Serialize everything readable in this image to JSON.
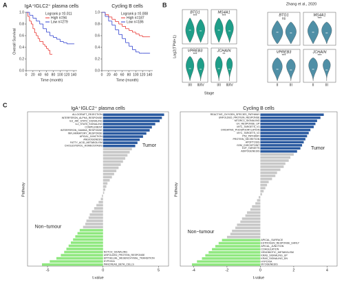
{
  "panel_labels": [
    "A",
    "B",
    "C"
  ],
  "chart_data": [
    {
      "type": "km",
      "title": "IgA⁺IGLC2⁺ plasma cells",
      "annotation": "Logrank p =0.011",
      "xlabel": "Time (month)",
      "ylabel": "Overall Survival",
      "xlim": [
        0,
        150
      ],
      "xticks": [
        0,
        20,
        40,
        60,
        80,
        100,
        120,
        140
      ],
      "ylim": [
        0,
        1
      ],
      "yticks": [
        {
          "value": 0,
          "label": "0.0"
        },
        0.2,
        0.4,
        0.6,
        0.8,
        {
          "value": 1,
          "label": "1.0"
        }
      ],
      "series": [
        {
          "name": "High n=94",
          "color": "#e8322e",
          "x": [
            0,
            5,
            10,
            15,
            20,
            25,
            30,
            35,
            40,
            50,
            55,
            60,
            65,
            70,
            75
          ],
          "values": [
            1,
            0.93,
            0.85,
            0.8,
            0.72,
            0.65,
            0.6,
            0.55,
            0.5,
            0.45,
            0.42,
            0.38,
            0.35,
            0.28,
            0.28
          ]
        },
        {
          "name": "Low n=279",
          "color": "#2d3fcf",
          "x": [
            0,
            10,
            20,
            30,
            40,
            50,
            60,
            70,
            80,
            90,
            100,
            110,
            120,
            140
          ],
          "values": [
            1,
            0.95,
            0.9,
            0.85,
            0.8,
            0.72,
            0.66,
            0.6,
            0.57,
            0.54,
            0.5,
            0.48,
            0.46,
            0.46
          ]
        }
      ]
    },
    {
      "type": "km",
      "title": "Cycling B cells",
      "annotation": "Logrank p =0.008",
      "xlabel": "Time (month)",
      "xlim": [
        0,
        150
      ],
      "xticks": [
        0,
        20,
        40,
        60,
        80,
        100,
        120,
        140
      ],
      "ylim": [
        0,
        1
      ],
      "yticks": [
        {
          "value": 0,
          "label": "0.0"
        },
        0.2,
        0.4,
        0.6,
        0.8,
        {
          "value": 1,
          "label": "1.0"
        }
      ],
      "series": [
        {
          "name": "High n=187",
          "color": "#e8322e",
          "x": [
            0,
            10,
            20,
            30,
            40,
            50,
            60,
            70,
            80,
            90,
            100,
            110,
            120,
            140
          ],
          "values": [
            1,
            0.96,
            0.92,
            0.88,
            0.84,
            0.8,
            0.76,
            0.72,
            0.69,
            0.66,
            0.63,
            0.6,
            0.58,
            0.58
          ]
        },
        {
          "name": "Low n=186",
          "color": "#2d3fcf",
          "x": [
            0,
            10,
            20,
            30,
            40,
            50,
            60,
            70,
            80,
            90,
            100,
            110,
            120,
            140
          ],
          "values": [
            1,
            0.93,
            0.85,
            0.78,
            0.7,
            0.62,
            0.55,
            0.48,
            0.42,
            0.36,
            0.32,
            0.3,
            0.3,
            0.3
          ]
        }
      ]
    },
    {
      "type": "violin",
      "ylabel": "Log2(TPM+1)",
      "xlabel": "Stage",
      "categories": [
        "I/II",
        "III/IV"
      ],
      "color": "#1f9e89",
      "panels": [
        {
          "gene": "BTG1",
          "sig": "***"
        },
        {
          "gene": "MS4A1",
          "sig": "***"
        },
        {
          "gene": "VPREB3",
          "sig": "***"
        },
        {
          "gene": "JCHAIN",
          "sig": "**"
        }
      ]
    },
    {
      "type": "violin",
      "title": "Zhang et al., 2020",
      "categories": [
        "II",
        "III"
      ],
      "color": "#4f8fa6",
      "panels": [
        {
          "gene": "BTG1",
          "sig": "ns"
        },
        {
          "gene": "MS4A1",
          "sig": "***"
        },
        {
          "gene": "VPREB3",
          "sig": "***"
        },
        {
          "gene": "JCHAIN",
          "sig": "***"
        }
      ]
    },
    {
      "type": "barh",
      "title": "IgA⁺IGLC2⁺ plasma cells",
      "xlabel": "t-value",
      "ylabel": "Pathway",
      "xlim": [
        -6.8,
        5.9
      ],
      "xticks": [
        -5,
        0,
        5
      ],
      "highlight_index": 2,
      "highlight_color": "#e03030",
      "series": [
        {
          "name": "Tumor",
          "color": "#2a5aa0",
          "categories": [
            "ALLOGRAFT_REJECTION",
            "INTERFERON_ALPHA_RESPONSE",
            "IL6_JAK_STAT3_SIGNALING",
            "IL2_STAT5_SIGNALING",
            "COMPLEMENT",
            "INTERFERON_GAMMA_RESPONSE",
            "INFLAMMATORY_RESPONSE",
            "APICAL_JUNCTION",
            "ANGIOGENESIS",
            "FATTY_ACID_METABOLISM",
            "CHOLESTEROL_HOMEOSTASIS"
          ],
          "values": [
            5.5,
            5.3,
            5.1,
            4.7,
            4.4,
            4.2,
            3.9,
            3.6,
            3.3,
            3.1,
            2.9
          ]
        },
        {
          "color": "#c8c8c8",
          "categories": [
            null,
            null,
            null,
            null,
            null,
            null,
            null,
            null,
            null,
            null,
            null,
            null,
            null,
            null,
            null,
            null,
            null,
            null,
            null,
            null,
            null,
            null,
            null,
            null,
            null,
            null
          ],
          "values": [
            2.6,
            2.4,
            2.2,
            2.0,
            1.8,
            1.6,
            1.4,
            1.2,
            1.0,
            0.8,
            0.6,
            0.4,
            0.3,
            0.2,
            0.1,
            -0.1,
            -0.2,
            -0.4,
            -0.6,
            -0.8,
            -1.0,
            -1.2,
            -1.3,
            -1.5,
            -1.6,
            -1.8
          ]
        },
        {
          "name": "Non−tumour",
          "color": "#90e880",
          "categories": [
            null,
            null,
            null,
            null,
            null,
            null,
            null,
            "NOTCH_SIGNALING",
            "UNFOLDED_PROTEIN_RESPONSE",
            "EPITHELIAL_MESENCHYMAL_TRANSITION",
            "HYPOXIA",
            "PANCREAS_BETA_CELLS"
          ],
          "values": [
            -2.1,
            -2.3,
            -2.5,
            -2.7,
            -2.9,
            -3.1,
            -3.3,
            -3.5,
            -3.8,
            -4.2,
            -4.8,
            -5.5
          ]
        }
      ]
    },
    {
      "type": "barh",
      "title": "Cycling B cells",
      "xlabel": "t-value",
      "ylabel": "Pathway",
      "xlim": [
        -4.8,
        4.6
      ],
      "xticks": [
        -4,
        -2,
        0,
        2,
        4
      ],
      "series": [
        {
          "name": "Tumor",
          "color": "#2a5aa0",
          "categories": [
            "REACTIVE_OXYGEN_SPECIES_PATHWAY",
            "UNFOLDED_PROTEIN_RESPONSE",
            "MTORC1_SIGNALING",
            "UV_RESPONSE_UP",
            "MYC_TARGETS_V1",
            "OXIDATIVE_PHOSPHORYLATION",
            "MYC_TARGETS_V2",
            "P53_PATHWAY",
            "PROTEIN_SECRETION",
            "APOPTOSIS",
            "G2M_CHECKPOINT",
            "E2F_TARGETS",
            "ADIPOGENESIS"
          ],
          "values": [
            3.8,
            3.6,
            3.4,
            3.3,
            3.2,
            3.0,
            2.9,
            2.8,
            2.7,
            2.6,
            2.5,
            2.4,
            2.2
          ]
        },
        {
          "color": "#c8c8c8",
          "categories": [
            null,
            null,
            null,
            null,
            null,
            null,
            null,
            null,
            null,
            null,
            null,
            null,
            null,
            null,
            null,
            null,
            null,
            null,
            null,
            null,
            null,
            null,
            null,
            null,
            null,
            null,
            null,
            null
          ],
          "values": [
            2.0,
            1.8,
            1.7,
            1.5,
            1.4,
            1.2,
            1.0,
            0.9,
            0.7,
            0.5,
            0.4,
            0.3,
            0.2,
            0.1,
            -0.1,
            -0.2,
            -0.3,
            -0.5,
            -0.6,
            -0.8,
            -0.9,
            -1.1,
            -1.2,
            -1.4,
            -1.5,
            -1.7,
            -1.8,
            -2.0
          ]
        },
        {
          "name": "Non−tumour",
          "color": "#90e880",
          "categories": [
            "APICAL_SURFACE",
            "ESTROGEN_RESPONSE_EARLY",
            "APICAL_JUNCTION",
            "COAGULATION",
            "XENOBIOTIC_METABOLISM",
            "KRAS_SIGNALING_UP",
            "KRAS_SIGNALING_DN",
            "HYPOXIA",
            "MYOGENESIS"
          ],
          "values": [
            -2.3,
            -2.5,
            -2.7,
            -2.9,
            -3.1,
            -3.3,
            -3.5,
            -3.8,
            -4.1
          ]
        }
      ]
    }
  ]
}
